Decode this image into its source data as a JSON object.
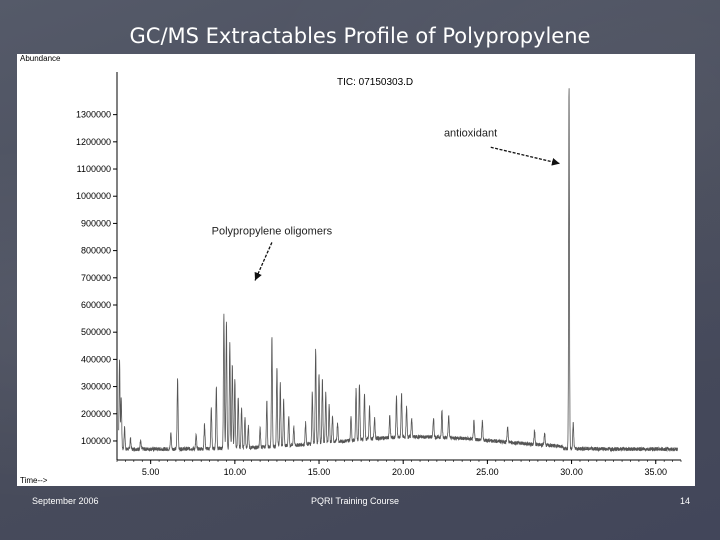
{
  "slide": {
    "title": "GC/MS Extractables Profile of Polypropylene",
    "footer_left": "September 2006",
    "footer_center": "PQRI Training Course",
    "footer_right": "14"
  },
  "chart_data": {
    "type": "line",
    "title": "TIC: 07150303.D",
    "ylabel": "Abundance",
    "xlabel": "Time-->",
    "xlim": [
      3.0,
      36.5
    ],
    "ylim": [
      30000,
      1420000
    ],
    "xticks": [
      5.0,
      10.0,
      15.0,
      20.0,
      25.0,
      30.0,
      35.0
    ],
    "xtick_labels": [
      "5.00",
      "10.00",
      "15.00",
      "20.00",
      "25.00",
      "30.00",
      "35.00"
    ],
    "yticks": [
      100000,
      200000,
      300000,
      400000,
      500000,
      600000,
      700000,
      800000,
      900000,
      1000000,
      1100000,
      1200000,
      1300000
    ],
    "ytick_labels": [
      "100000",
      "200000",
      "300000",
      "400000",
      "500000",
      "600000",
      "700000",
      "800000",
      "900000",
      "1000000",
      "1100000",
      "1200000",
      "1300000"
    ],
    "baseline": 70000,
    "peaks": [
      [
        3.15,
        400000
      ],
      [
        3.25,
        260000
      ],
      [
        3.45,
        150000
      ],
      [
        3.8,
        110000
      ],
      [
        4.4,
        100000
      ],
      [
        6.2,
        130000
      ],
      [
        6.6,
        330000
      ],
      [
        7.7,
        120000
      ],
      [
        8.2,
        160000
      ],
      [
        8.6,
        220000
      ],
      [
        8.9,
        300000
      ],
      [
        9.35,
        560000
      ],
      [
        9.5,
        530000
      ],
      [
        9.7,
        460000
      ],
      [
        9.85,
        380000
      ],
      [
        10.0,
        320000
      ],
      [
        10.2,
        260000
      ],
      [
        10.4,
        220000
      ],
      [
        10.6,
        180000
      ],
      [
        10.8,
        150000
      ],
      [
        11.5,
        140000
      ],
      [
        11.9,
        240000
      ],
      [
        12.2,
        470000
      ],
      [
        12.5,
        360000
      ],
      [
        12.7,
        300000
      ],
      [
        12.9,
        240000
      ],
      [
        13.2,
        180000
      ],
      [
        13.5,
        140000
      ],
      [
        14.2,
        150000
      ],
      [
        14.6,
        260000
      ],
      [
        14.8,
        420000
      ],
      [
        15.0,
        330000
      ],
      [
        15.2,
        300000
      ],
      [
        15.4,
        260000
      ],
      [
        15.6,
        210000
      ],
      [
        15.8,
        170000
      ],
      [
        16.1,
        140000
      ],
      [
        16.9,
        160000
      ],
      [
        17.2,
        260000
      ],
      [
        17.4,
        280000
      ],
      [
        17.7,
        240000
      ],
      [
        18.0,
        190000
      ],
      [
        18.3,
        150000
      ],
      [
        19.2,
        150000
      ],
      [
        19.6,
        220000
      ],
      [
        19.9,
        230000
      ],
      [
        20.2,
        180000
      ],
      [
        20.5,
        140000
      ],
      [
        21.8,
        140000
      ],
      [
        22.3,
        170000
      ],
      [
        22.7,
        150000
      ],
      [
        24.2,
        135000
      ],
      [
        24.7,
        140000
      ],
      [
        26.2,
        125000
      ],
      [
        27.8,
        122000
      ],
      [
        28.4,
        115000
      ],
      [
        29.85,
        1400000
      ],
      [
        30.1,
        165000
      ]
    ],
    "annotations": [
      {
        "text": "antioxidant",
        "x": 24.0,
        "y": 1220000,
        "arrow_from": [
          25.2,
          1180000
        ],
        "arrow_to": [
          29.3,
          1120000
        ]
      },
      {
        "text": "Polypropylene oligomers",
        "x": 12.2,
        "y": 860000,
        "arrow_from": [
          12.2,
          830000
        ],
        "arrow_to": [
          11.2,
          690000
        ]
      }
    ],
    "grid": false,
    "legend": "none"
  }
}
